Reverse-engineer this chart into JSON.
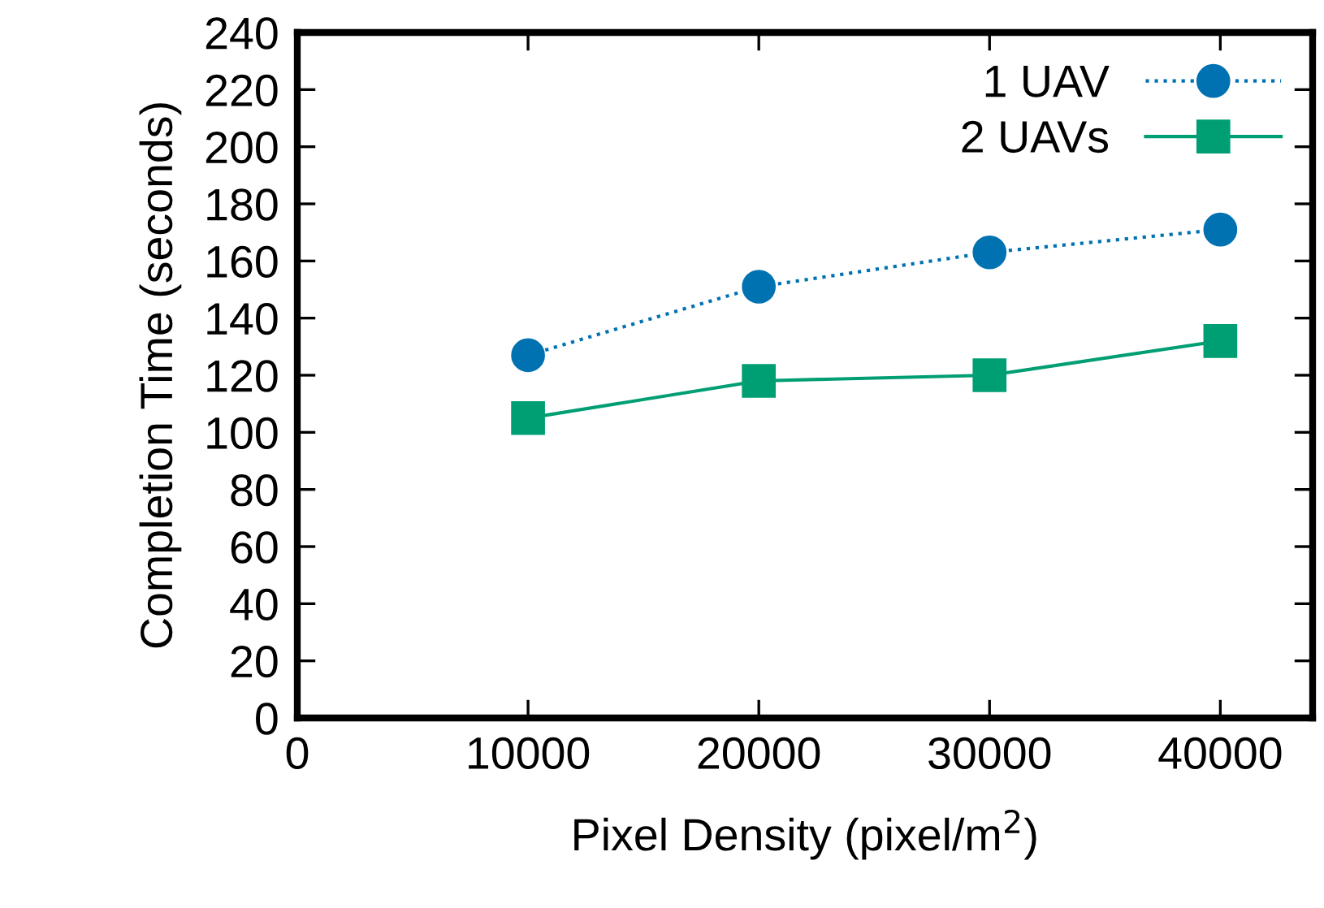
{
  "chart_data": {
    "type": "line",
    "xlabel": "Pixel Density (pixel/m$^{2}$)",
    "ylabel": "Completion Time (seconds)",
    "x": [
      10000,
      20000,
      30000,
      40000
    ],
    "series": [
      {
        "name": "1 UAV",
        "color": "#0072b2",
        "values": [
          127,
          151,
          163,
          171
        ],
        "marker": "circle",
        "line_style": "dotted"
      },
      {
        "name": "2 UAVs",
        "color": "#009e73",
        "values": [
          105,
          118,
          120,
          132
        ],
        "marker": "square",
        "line_style": "solid"
      }
    ],
    "xlim": [
      0,
      44000
    ],
    "xticks": [
      0,
      10000,
      20000,
      30000,
      40000
    ],
    "ylim": [
      0,
      240
    ],
    "yticks": [
      0,
      20,
      40,
      60,
      80,
      100,
      120,
      140,
      160,
      180,
      200,
      220,
      240
    ],
    "grid": false,
    "legend": "top right"
  }
}
